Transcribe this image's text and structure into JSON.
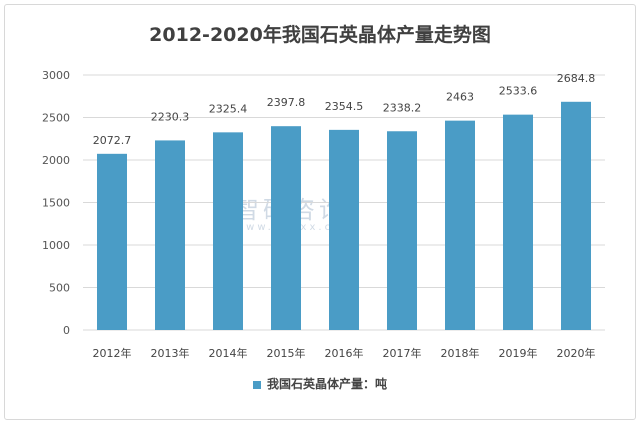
{
  "chart_data": {
    "type": "bar",
    "title": "2012-2020年我国石英晶体产量走势图",
    "categories": [
      "2012年",
      "2013年",
      "2014年",
      "2015年",
      "2016年",
      "2017年",
      "2018年",
      "2019年",
      "2020年"
    ],
    "series": [
      {
        "name": "我国石英晶体产量：吨",
        "values": [
          2072.7,
          2230.3,
          2325.4,
          2397.8,
          2354.5,
          2338.2,
          2463,
          2533.6,
          2684.8
        ]
      }
    ],
    "data_labels": [
      "2072.7",
      "2230.3",
      "2325.4",
      "2397.8",
      "2354.5",
      "2338.2",
      "2463",
      "2533.6",
      "2684.8"
    ],
    "yticks": [
      0,
      500,
      1000,
      1500,
      2000,
      2500,
      3000
    ],
    "ylim": [
      0,
      3000
    ],
    "grid": true,
    "legend": "bottom",
    "bar_color": "#4a9cc6"
  },
  "watermark": {
    "name": "智研咨询",
    "url": "www.chyxx.com"
  }
}
